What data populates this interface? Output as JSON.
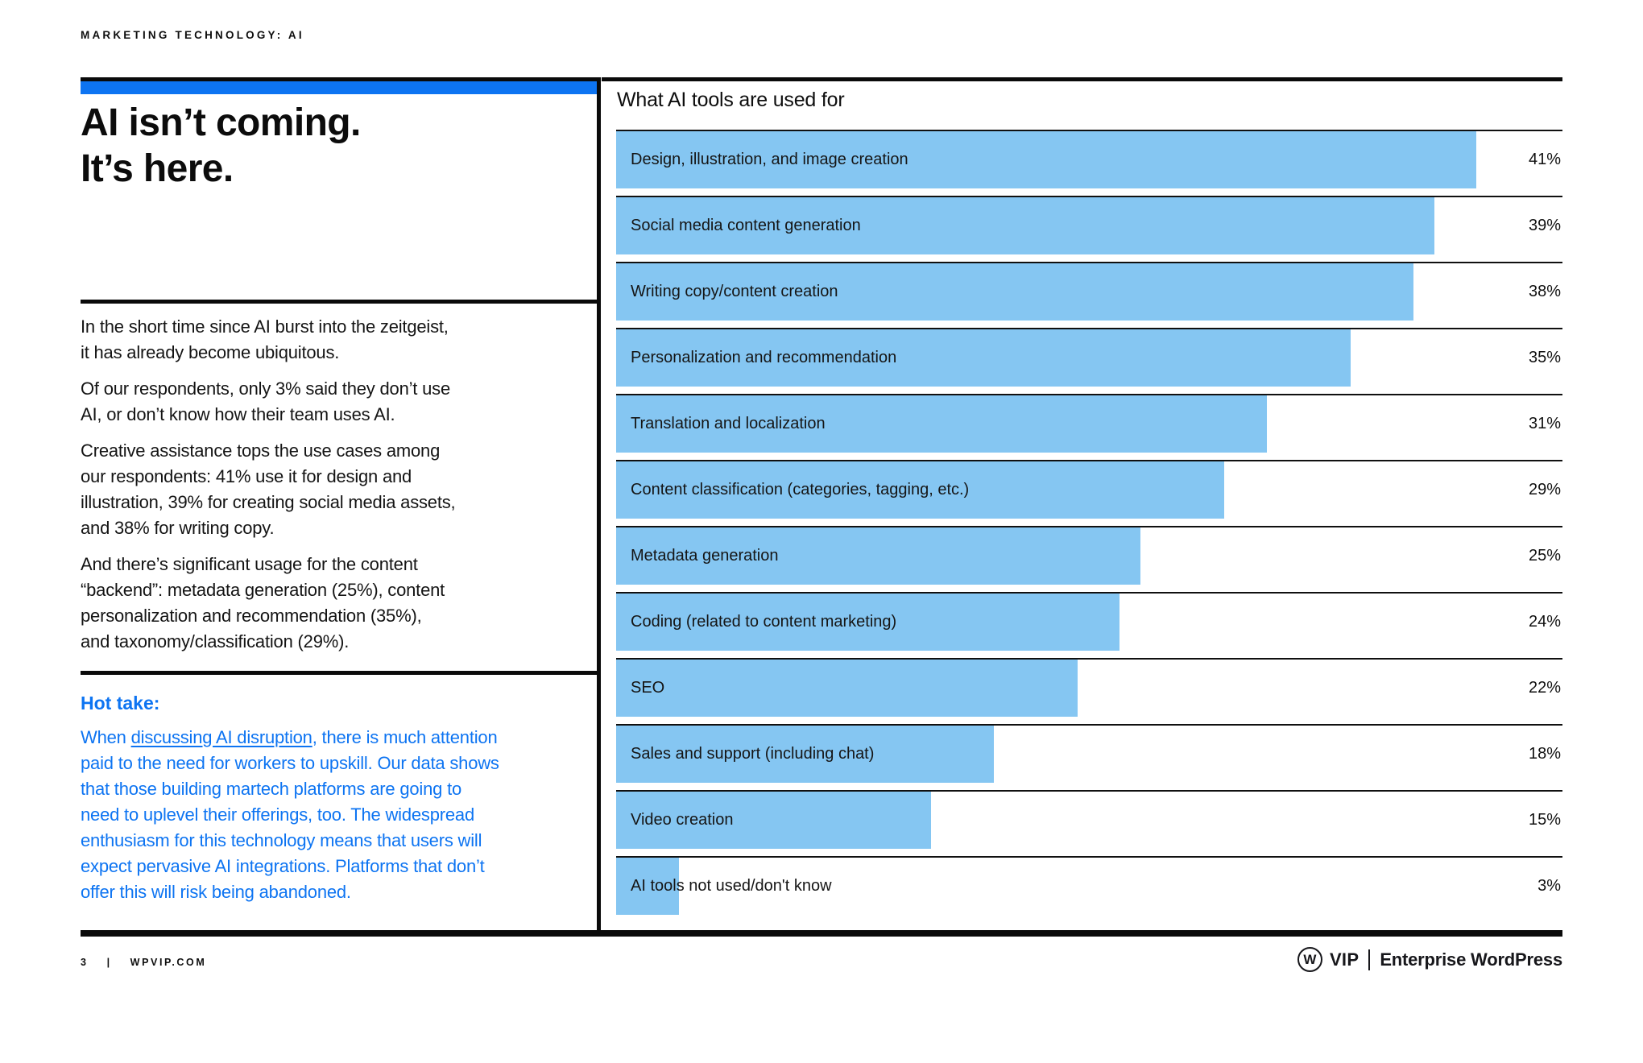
{
  "eyebrow": "MARKETING TECHNOLOGY: AI",
  "headline": "AI isn’t coming.\nIt’s here.",
  "intro": {
    "paragraphs": [
      "In the short time since AI burst into the zeitgeist,\nit has already become ubiquitous.",
      "Of our respondents, only 3% said they don’t use\nAI, or don’t know how their team uses AI.",
      "Creative assistance tops the use cases among\nour respondents: 41% use it for design and\nillustration, 39% for creating social media assets,\nand 38% for writing copy.",
      "And there’s significant usage for the content\n“backend”: metadata generation (25%), content\npersonalization and recommendation (35%),\nand taxonomy/classification (29%)."
    ]
  },
  "hot_take": {
    "heading": "Hot take:",
    "text_before_link": "When ",
    "link_text": "discussing AI disruption",
    "text_after_link": ", there is much attention\npaid to the need for workers to upskill. Our data shows\nthat those building martech platforms are going to\nneed to uplevel their offerings, too. The widespread\nenthusiasm for this technology means that users will\nexpect pervasive AI integrations. Platforms that don’t\noffer this will risk being abandoned."
  },
  "chart": {
    "title": "What AI tools are used for",
    "rows": [
      {
        "label": "Design, illustration, and image creation",
        "value": 41,
        "pct_label": "41%"
      },
      {
        "label": "Social media content generation",
        "value": 39,
        "pct_label": "39%"
      },
      {
        "label": "Writing copy/content creation",
        "value": 38,
        "pct_label": "38%"
      },
      {
        "label": "Personalization and recommendation",
        "value": 35,
        "pct_label": "35%"
      },
      {
        "label": "Translation and localization",
        "value": 31,
        "pct_label": "31%"
      },
      {
        "label": "Content classification (categories, tagging, etc.)",
        "value": 29,
        "pct_label": "29%"
      },
      {
        "label": "Metadata generation",
        "value": 25,
        "pct_label": "25%"
      },
      {
        "label": "Coding (related to content marketing)",
        "value": 24,
        "pct_label": "24%"
      },
      {
        "label": "SEO",
        "value": 22,
        "pct_label": "22%"
      },
      {
        "label": "Sales and support (including chat)",
        "value": 18,
        "pct_label": "18%"
      },
      {
        "label": "Video creation",
        "value": 15,
        "pct_label": "15%"
      },
      {
        "label": "AI tools not used/don't know",
        "value": 3,
        "pct_label": "3%"
      }
    ]
  },
  "chart_data": {
    "type": "bar",
    "orientation": "horizontal",
    "title": "What AI tools are used for",
    "categories": [
      "Design, illustration, and image creation",
      "Social media content generation",
      "Writing copy/content creation",
      "Personalization and recommendation",
      "Translation and localization",
      "Content classification (categories, tagging, etc.)",
      "Metadata generation",
      "Coding (related to content marketing)",
      "SEO",
      "Sales and support (including chat)",
      "Video creation",
      "AI tools not used/don't know"
    ],
    "values": [
      41,
      39,
      38,
      35,
      31,
      29,
      25,
      24,
      22,
      18,
      15,
      3
    ],
    "value_unit": "%",
    "xlabel": "",
    "ylabel": "",
    "grid": "row-separators",
    "data_labels": "right-aligned percentages"
  },
  "footer": {
    "page_number": "3",
    "separator": "|",
    "site": "WPVIP.COM",
    "logo": {
      "w_letter": "W",
      "vip": "VIP",
      "enterprise": "Enterprise WordPress"
    }
  },
  "colors": {
    "accent_blue": "#0d74f2",
    "bar_blue": "#85c6f2",
    "ink": "#0d0d0d"
  }
}
